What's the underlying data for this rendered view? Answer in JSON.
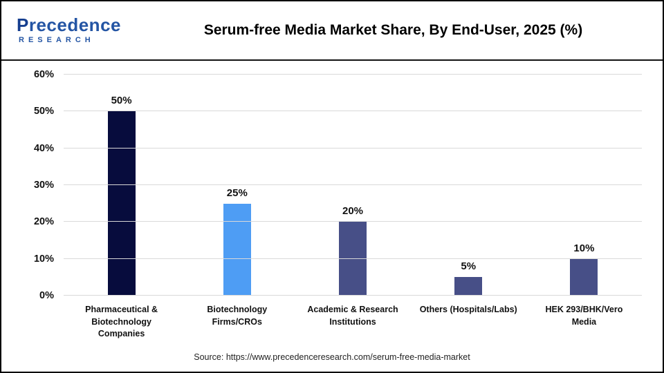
{
  "header": {
    "logo": {
      "name": "Precedence",
      "subtitle": "RESEARCH"
    },
    "title": "Serum-free Media Market Share, By End-User, 2025 (%)"
  },
  "chart_data": {
    "type": "bar",
    "title": "Serum-free Media Market Share, By End-User, 2025 (%)",
    "categories": [
      "Pharmaceutical & Biotechnology Companies",
      "Biotechnology Firms/CROs",
      "Academic & Research Institutions",
      "Others (Hospitals/Labs)",
      "HEK 293/BHK/Vero Media"
    ],
    "category_lines": [
      [
        "Pharmaceutical &",
        "Biotechnology",
        "Companies"
      ],
      [
        "Biotechnology",
        "Firms/CROs"
      ],
      [
        "Academic & Research",
        "Institutions"
      ],
      [
        "Others (Hospitals/Labs)"
      ],
      [
        "HEK 293/BHK/Vero",
        "Media"
      ]
    ],
    "values": [
      50,
      25,
      20,
      5,
      10
    ],
    "value_labels": [
      "50%",
      "25%",
      "20%",
      "5%",
      "10%"
    ],
    "bar_colors": [
      "#070c3d",
      "#4e9df4",
      "#474f87",
      "#474f87",
      "#474f87"
    ],
    "ylim": [
      0,
      60
    ],
    "ytick_step": 10,
    "ytick_labels": [
      "0%",
      "10%",
      "20%",
      "30%",
      "40%",
      "50%",
      "60%"
    ],
    "grid": true,
    "legend": false,
    "xlabel": "",
    "ylabel": ""
  },
  "footer": {
    "source": "Source: https://www.precedenceresearch.com/serum-free-media-market"
  }
}
